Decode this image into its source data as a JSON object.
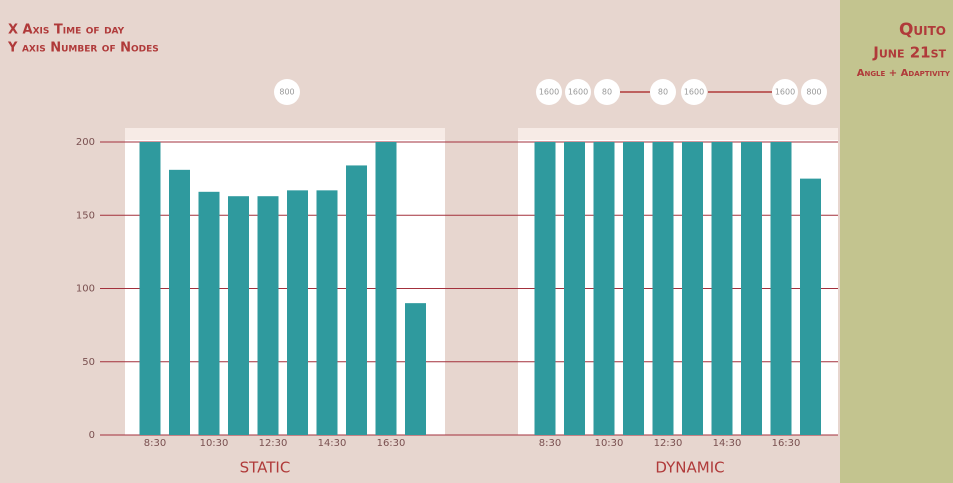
{
  "header": {
    "x_axis": "X Axis Time of day",
    "y_axis": "Y axis Number of Nodes"
  },
  "side": {
    "city": "Quito",
    "date": "June 21st",
    "subtitle": "Angle + Adaptivity"
  },
  "chart_data": [
    {
      "type": "bar",
      "title": "STATIC",
      "categories": [
        "8:30",
        null,
        "10:30",
        null,
        "12:30",
        null,
        "14:30",
        null,
        "16:30",
        null
      ],
      "values": [
        200,
        181,
        166,
        163,
        163,
        167,
        167,
        184,
        200,
        90
      ],
      "color": "#2f9a9e",
      "ylim": [
        0,
        200
      ],
      "yticks": [
        0,
        50,
        100,
        150,
        200
      ],
      "grid": true,
      "annotations": [
        "800"
      ]
    },
    {
      "type": "bar",
      "title": "DYNAMIC",
      "categories": [
        "8:30",
        null,
        "10:30",
        null,
        "12:30",
        null,
        "14:30",
        null,
        "16:30",
        null
      ],
      "values": [
        200,
        200,
        200,
        200,
        200,
        200,
        200,
        200,
        200,
        175
      ],
      "color": "#2f9a9e",
      "ylim": [
        0,
        200
      ],
      "annotations": [
        "1600",
        "1600",
        "80",
        "80",
        "1600",
        "1600",
        "800"
      ]
    }
  ]
}
